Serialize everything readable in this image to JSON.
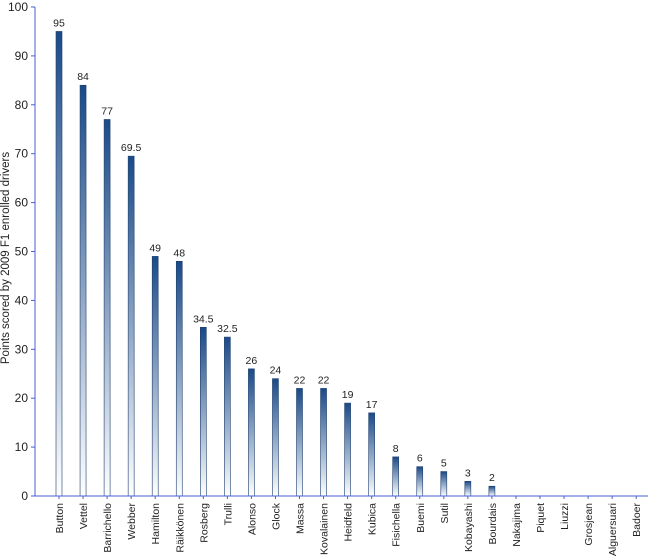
{
  "chart_data": {
    "type": "bar",
    "title": "",
    "xlabel": "",
    "ylabel": "Points scored by 2009 F1 enrolled drivers",
    "ylim": [
      0,
      100
    ],
    "yticks": [
      0,
      10,
      20,
      30,
      40,
      50,
      60,
      70,
      80,
      90,
      100
    ],
    "grid": false,
    "legend": "none",
    "categories": [
      "Button",
      "Vettel",
      "Barrichello",
      "Webber",
      "Hamilton",
      "Räikkönen",
      "Rosberg",
      "Trulli",
      "Alonso",
      "Glock",
      "Massa",
      "Kovalainen",
      "Heidfeld",
      "Kubica",
      "Fisichella",
      "Buemi",
      "Sutil",
      "Kobayashi",
      "Bourdais",
      "Nakajima",
      "Piquet",
      "Liuzzi",
      "Grosjean",
      "Alguersuari",
      "Badoer"
    ],
    "values": [
      95,
      84,
      77,
      69.5,
      49,
      48,
      34.5,
      32.5,
      26,
      24,
      22,
      22,
      19,
      17,
      8,
      6,
      5,
      3,
      2,
      0,
      0,
      0,
      0,
      0,
      0
    ],
    "value_labels": [
      "95",
      "84",
      "77",
      "69.5",
      "49",
      "48",
      "34.5",
      "32.5",
      "26",
      "24",
      "22",
      "22",
      "19",
      "17",
      "8",
      "6",
      "5",
      "3",
      "2",
      "",
      "",
      "",
      "",
      "",
      ""
    ],
    "colors": {
      "bar_top": "#1a4a87",
      "bar_bottom": "#ffffff",
      "bar_outline": "#1f3f6e",
      "axis": "#4a5fd0"
    }
  }
}
